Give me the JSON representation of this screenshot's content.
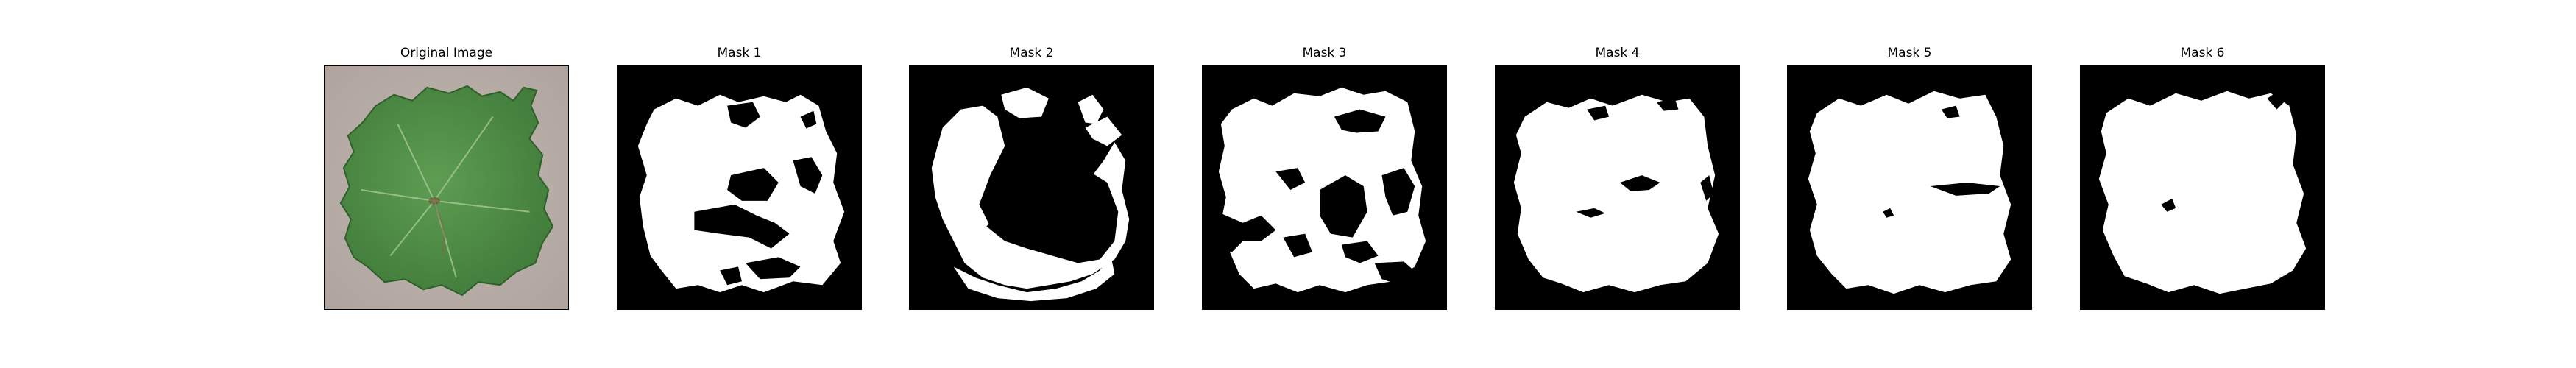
{
  "panels": [
    {
      "title": "Original Image"
    },
    {
      "title": "Mask 1"
    },
    {
      "title": "Mask 2"
    },
    {
      "title": "Mask 3"
    },
    {
      "title": "Mask 4"
    },
    {
      "title": "Mask 5"
    },
    {
      "title": "Mask 6"
    }
  ],
  "colors": {
    "background": "#ffffff",
    "mask_foreground": "#ffffff",
    "mask_background": "#000000",
    "leaf": "#4e8e45",
    "photo_backdrop": "#b9aea7"
  }
}
